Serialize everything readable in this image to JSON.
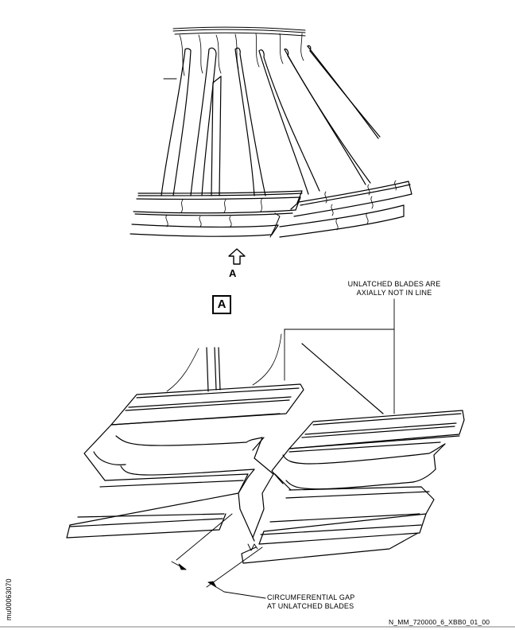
{
  "labels": {
    "view_arrow": "A",
    "view_box": "A",
    "unlatched_line1": "UNLATCHED BLADES ARE",
    "unlatched_line2": "AXIALLY NOT IN LINE",
    "gap_line1": "CIRCUMFERENTIAL GAP",
    "gap_line2": "AT UNLATCHED BLADES",
    "figure_ref": "N_MM_720000_6_XBB0_01_00",
    "side_code": "mu00063070"
  }
}
